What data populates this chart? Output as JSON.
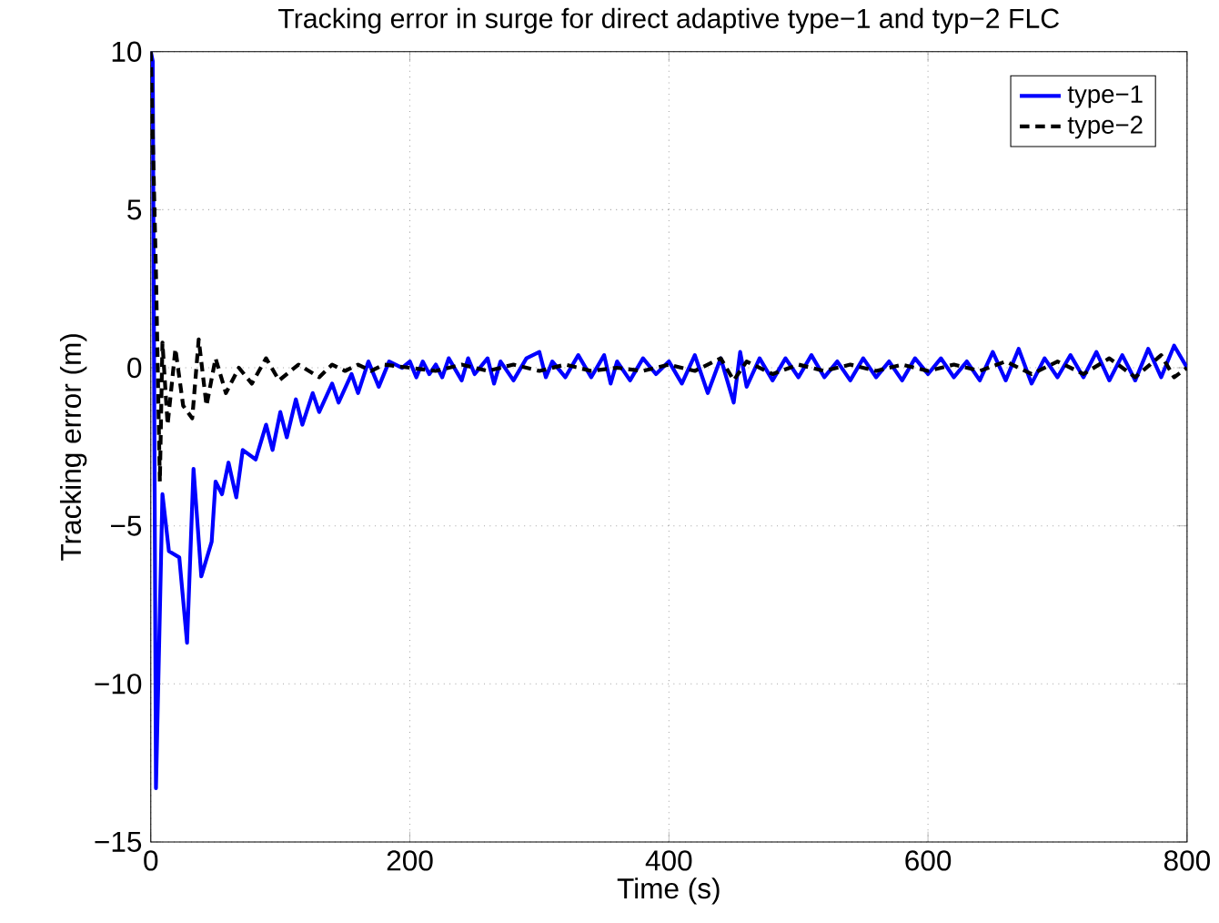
{
  "chart_data": {
    "type": "line",
    "title": "Tracking error in surge for direct adaptive type−1 and typ−2 FLC",
    "xlabel": "Time (s)",
    "ylabel": "Tracking error (m)",
    "xlim": [
      0,
      800
    ],
    "ylim": [
      -15,
      10
    ],
    "xticks": [
      0,
      200,
      400,
      600,
      800
    ],
    "yticks": [
      {
        "value": -15,
        "label": "−15"
      },
      {
        "value": -10,
        "label": "−10"
      },
      {
        "value": -5,
        "label": "−5"
      },
      0,
      5,
      10
    ],
    "grid": true,
    "legend": "top right",
    "series": [
      {
        "name": "type−1",
        "color": "#0000ff",
        "line_style": "solid",
        "x": [
          0,
          1.5,
          4,
          9,
          14,
          22,
          28,
          33,
          39,
          47,
          50,
          55,
          60,
          66,
          71,
          81,
          89,
          94,
          100,
          105,
          112,
          117,
          125,
          130,
          140,
          145,
          155,
          160,
          168,
          176,
          184,
          194,
          200,
          205,
          210,
          215,
          220,
          225,
          230,
          240,
          245,
          250,
          260,
          265,
          270,
          280,
          290,
          300,
          305,
          310,
          320,
          330,
          340,
          350,
          355,
          360,
          370,
          380,
          390,
          400,
          410,
          420,
          430,
          440,
          450,
          455,
          460,
          470,
          480,
          490,
          500,
          510,
          520,
          530,
          540,
          550,
          560,
          570,
          580,
          590,
          600,
          610,
          620,
          630,
          640,
          650,
          660,
          670,
          680,
          690,
          700,
          710,
          720,
          730,
          740,
          750,
          760,
          770,
          780,
          790,
          800
        ],
        "values": [
          10,
          9.7,
          -13.3,
          -4.0,
          -5.8,
          -6.0,
          -8.7,
          -3.2,
          -6.6,
          -5.5,
          -3.6,
          -4.0,
          -3.0,
          -4.1,
          -2.6,
          -2.9,
          -1.8,
          -2.6,
          -1.4,
          -2.2,
          -1.0,
          -1.8,
          -0.8,
          -1.4,
          -0.5,
          -1.1,
          -0.2,
          -0.8,
          0.2,
          -0.6,
          0.2,
          0,
          0.2,
          -0.3,
          0.2,
          -0.2,
          0.1,
          -0.3,
          0.3,
          -0.4,
          0.3,
          -0.2,
          0.3,
          -0.5,
          0.2,
          -0.4,
          0.3,
          0.5,
          -0.3,
          0.2,
          -0.3,
          0.4,
          -0.3,
          0.4,
          -0.5,
          0.2,
          -0.4,
          0.3,
          -0.2,
          0.2,
          -0.5,
          0.4,
          -0.8,
          0.3,
          -1.1,
          0.5,
          -0.6,
          0.3,
          -0.4,
          0.3,
          -0.3,
          0.4,
          -0.3,
          0.2,
          -0.4,
          0.3,
          -0.3,
          0.2,
          -0.4,
          0.3,
          -0.2,
          0.3,
          -0.3,
          0.2,
          -0.4,
          0.5,
          -0.4,
          0.6,
          -0.5,
          0.3,
          -0.3,
          0.4,
          -0.3,
          0.5,
          -0.4,
          0.4,
          -0.4,
          0.6,
          -0.3,
          0.7,
          0
        ]
      },
      {
        "name": "type−2",
        "color": "#000000",
        "line_style": "dashed",
        "x": [
          0,
          4,
          7,
          9,
          13,
          19,
          25,
          32,
          37,
          43,
          50,
          58,
          68,
          78,
          89,
          99,
          114,
          130,
          140,
          150,
          160,
          170,
          180,
          200,
          220,
          240,
          260,
          280,
          300,
          320,
          340,
          360,
          380,
          400,
          420,
          440,
          450,
          460,
          480,
          500,
          520,
          540,
          560,
          580,
          600,
          620,
          640,
          660,
          680,
          700,
          720,
          740,
          760,
          780,
          790,
          800
        ],
        "values": [
          10,
          3.0,
          -3.6,
          0.8,
          -1.8,
          0.6,
          -1.2,
          -1.6,
          0.9,
          -1.2,
          0.3,
          -0.8,
          0,
          -0.5,
          0.3,
          -0.4,
          0.1,
          -0.3,
          0.1,
          -0.1,
          0.1,
          -0.1,
          0.1,
          0,
          -0.1,
          0.1,
          -0.1,
          0.1,
          -0.1,
          0.1,
          -0.1,
          0,
          -0.1,
          0.1,
          -0.1,
          0.3,
          -0.4,
          0.2,
          -0.2,
          0.1,
          -0.1,
          0.1,
          -0.1,
          0.1,
          -0.1,
          0.1,
          -0.1,
          0.2,
          -0.2,
          0.2,
          -0.2,
          0.3,
          -0.3,
          0.4,
          -0.3,
          0
        ]
      }
    ]
  }
}
